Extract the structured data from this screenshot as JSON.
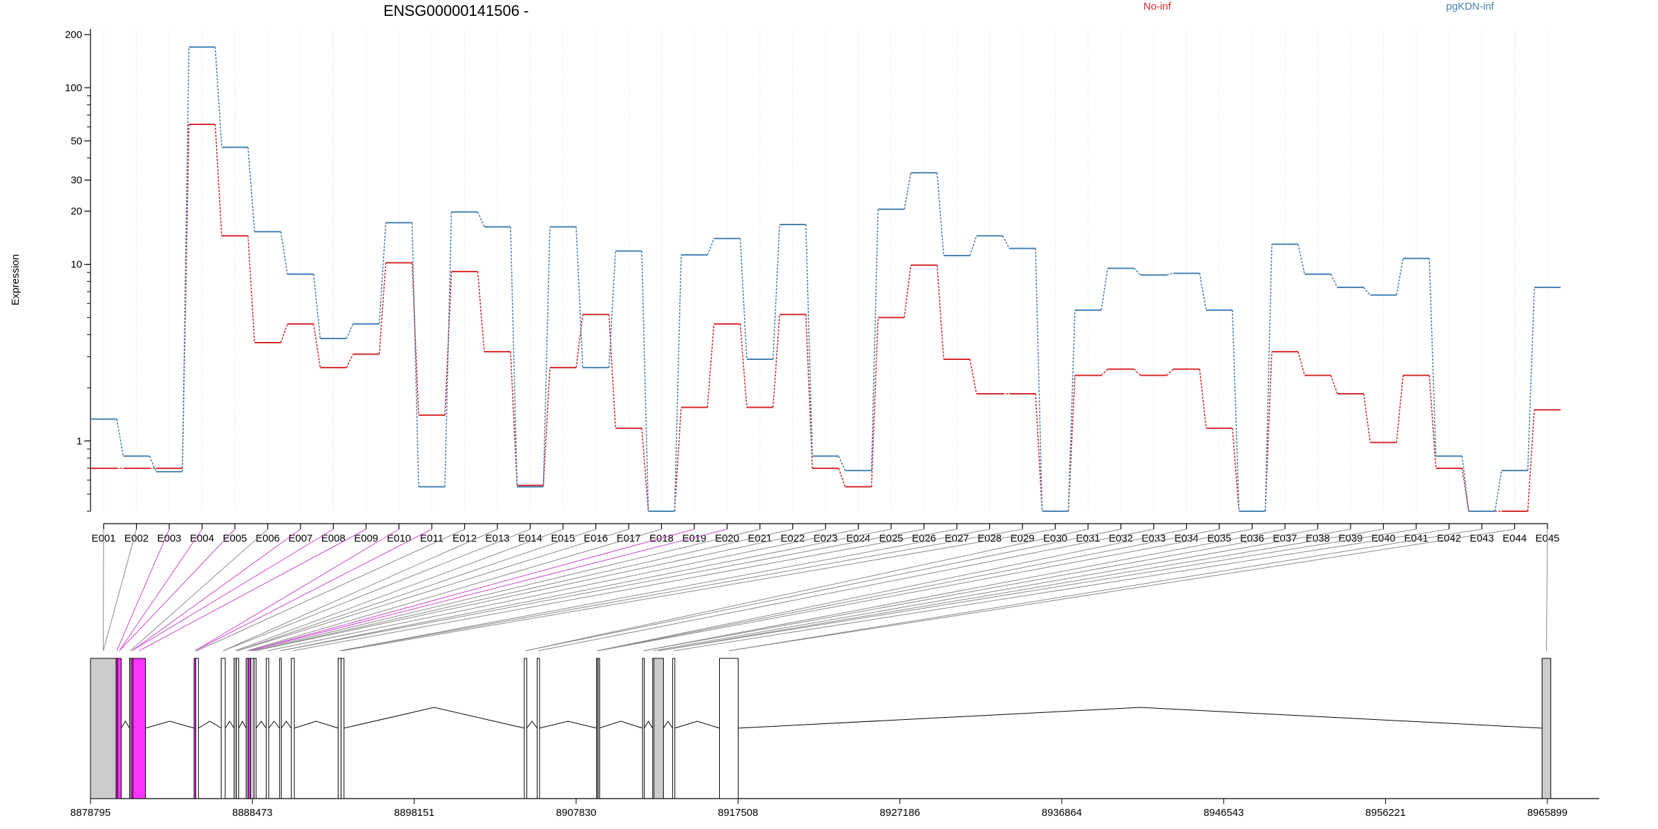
{
  "chart_data": {
    "type": "line",
    "title": "ENSG00000141506 -",
    "ylabel": "Expression",
    "xlabel": "",
    "y_scale": "log",
    "ylim": [
      0.4,
      215
    ],
    "y_ticks": [
      1,
      10,
      20,
      30,
      50,
      100,
      200
    ],
    "grid": "vertical-dotted",
    "legend_placement": "top-right",
    "categories": [
      "E001",
      "E002",
      "E003",
      "E004",
      "E005",
      "E006",
      "E007",
      "E008",
      "E009",
      "E010",
      "E011",
      "E012",
      "E013",
      "E014",
      "E015",
      "E016",
      "E017",
      "E018",
      "E019",
      "E020",
      "E021",
      "E022",
      "E023",
      "E024",
      "E025",
      "E026",
      "E027",
      "E028",
      "E029",
      "E030",
      "E031",
      "E032",
      "E033",
      "E034",
      "E035",
      "E036",
      "E037",
      "E038",
      "E039",
      "E040",
      "E041",
      "E042",
      "E043",
      "E044",
      "E045"
    ],
    "series": [
      {
        "name": "No-inf",
        "color": "#d62728",
        "values": [
          0.7,
          0.7,
          0.7,
          62,
          14.5,
          3.6,
          4.6,
          2.6,
          3.1,
          10.2,
          1.4,
          9.1,
          3.2,
          0.56,
          2.6,
          5.2,
          1.18,
          0.4,
          1.55,
          4.6,
          1.55,
          5.2,
          0.7,
          0.55,
          5,
          9.9,
          2.9,
          1.85,
          1.85,
          0.4,
          2.35,
          2.55,
          2.35,
          2.55,
          1.18,
          0.4,
          3.2,
          2.35,
          1.85,
          0.98,
          2.35,
          0.7,
          0.4,
          0.4,
          1.5
        ]
      },
      {
        "name": "pgKDN-inf",
        "color": "#4682b4",
        "values": [
          1.33,
          0.82,
          0.67,
          170,
          46,
          15.3,
          8.8,
          3.8,
          4.6,
          17.2,
          0.55,
          19.8,
          16.3,
          0.55,
          16.3,
          2.6,
          11.9,
          0.4,
          11.3,
          14,
          2.9,
          16.8,
          0.82,
          0.68,
          20.5,
          33,
          11.2,
          14.5,
          12.3,
          0.4,
          5.5,
          9.5,
          8.7,
          8.9,
          5.5,
          0.4,
          13,
          8.8,
          7.4,
          6.7,
          10.8,
          0.82,
          0.4,
          0.68,
          7.4
        ]
      }
    ],
    "exon_axis_labels": [
      "E001",
      "E002",
      "E003",
      "E004",
      "E005",
      "E006",
      "E007",
      "E008",
      "E009",
      "E010",
      "E011",
      "E012",
      "E013",
      "E014",
      "E015",
      "E016",
      "E017",
      "E018",
      "E019",
      "E020",
      "E021",
      "E022",
      "E023",
      "E024",
      "E025",
      "E026",
      "E027",
      "E028",
      "E029",
      "E030",
      "E031",
      "E032",
      "E033",
      "E034",
      "E035",
      "E036",
      "E037",
      "E038",
      "E039",
      "E040",
      "E041",
      "E042",
      "E043",
      "E044",
      "E045"
    ],
    "genomic_ticks": [
      "8878795",
      "8888473",
      "8898151",
      "8907830",
      "8917508",
      "8927186",
      "8936864",
      "8946543",
      "8956221",
      "8965899"
    ],
    "genomic_range": [
      8878795,
      8969000
    ],
    "exons": [
      {
        "start": 8878795,
        "end": 8880325,
        "fill": "#cccccc"
      },
      {
        "start": 8880325,
        "end": 8880410,
        "fill": "#ff33ff"
      },
      {
        "start": 8880410,
        "end": 8880630,
        "fill": "#ff33ff"
      },
      {
        "start": 8881130,
        "end": 8881220,
        "fill": "#cccccc"
      },
      {
        "start": 8881220,
        "end": 8881330,
        "fill": "#ff33ff"
      },
      {
        "start": 8881330,
        "end": 8882080,
        "fill": "#ff33ff"
      },
      {
        "start": 8884990,
        "end": 8885090,
        "fill": "#ff33ff"
      },
      {
        "start": 8885090,
        "end": 8885250,
        "fill": "#ffffff"
      },
      {
        "start": 8886610,
        "end": 8886850,
        "fill": "#ffffff"
      },
      {
        "start": 8887380,
        "end": 8887520,
        "fill": "#cccccc"
      },
      {
        "start": 8887520,
        "end": 8887660,
        "fill": "#ffffff"
      },
      {
        "start": 8888100,
        "end": 8888220,
        "fill": "#cccccc"
      },
      {
        "start": 8888220,
        "end": 8888360,
        "fill": "#ff33ff"
      },
      {
        "start": 8888360,
        "end": 8888580,
        "fill": "#cccccc"
      },
      {
        "start": 8888580,
        "end": 8888700,
        "fill": "#ffffff"
      },
      {
        "start": 8889300,
        "end": 8889450,
        "fill": "#ffffff"
      },
      {
        "start": 8890100,
        "end": 8890200,
        "fill": "#ffffff"
      },
      {
        "start": 8890800,
        "end": 8890980,
        "fill": "#ffffff"
      },
      {
        "start": 8893600,
        "end": 8893780,
        "fill": "#ffffff"
      },
      {
        "start": 8893780,
        "end": 8893950,
        "fill": "#ffffff"
      },
      {
        "start": 8904730,
        "end": 8904880,
        "fill": "#ffffff"
      },
      {
        "start": 8905500,
        "end": 8905640,
        "fill": "#ffffff"
      },
      {
        "start": 8909050,
        "end": 8909130,
        "fill": "#cccccc"
      },
      {
        "start": 8909130,
        "end": 8909200,
        "fill": "#cccccc"
      },
      {
        "start": 8911800,
        "end": 8911900,
        "fill": "#ffffff"
      },
      {
        "start": 8912400,
        "end": 8912480,
        "fill": "#ffffff"
      },
      {
        "start": 8912480,
        "end": 8913050,
        "fill": "#cccccc"
      },
      {
        "start": 8913600,
        "end": 8913730,
        "fill": "#ffffff"
      },
      {
        "start": 8916400,
        "end": 8917520,
        "fill": "#ffffff"
      },
      {
        "start": 8965580,
        "end": 8966100,
        "fill": "#cccccc"
      }
    ]
  }
}
